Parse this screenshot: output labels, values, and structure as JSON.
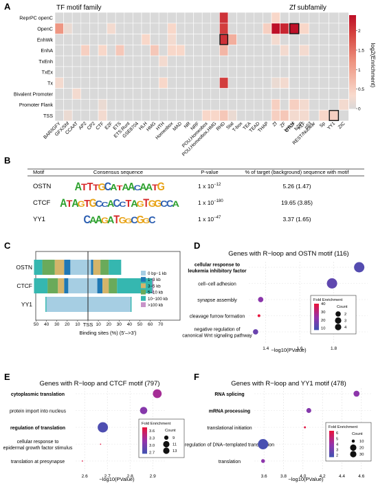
{
  "panel_letters": [
    "A",
    "B",
    "C",
    "D",
    "E",
    "F"
  ],
  "panelA": {
    "title_left": "TF motif family",
    "title_right": "Zf subfamily",
    "colorbar_label": "log2(Enrichment)",
    "colorbar_ticks": [
      "0",
      "0.5",
      "1",
      "1.5",
      "2"
    ]
  },
  "panelB": {
    "headers": [
      "Motif",
      "Consensus sequence",
      "P-value",
      "% of target (background) sequence with motif"
    ],
    "rows": [
      {
        "motif": "OSTN",
        "logo": "ATTTGCATAACAATG",
        "p_base": "1 x 10",
        "p_exp": "−12",
        "pct": "5.26 (1.47)"
      },
      {
        "motif": "CTCF",
        "logo": "ATAGTGCCACCTAGTGGCCA",
        "p_base": "1 x 10",
        "p_exp": "−180",
        "pct": "19.65 (3.85)"
      },
      {
        "motif": "YY1",
        "logo": "CAAGATGGCGGC",
        "p_base": "1 x 10",
        "p_exp": "−47",
        "pct": "3.37 (1.65)"
      }
    ]
  },
  "panelC": {
    "tss_label": "TSS",
    "xlabel": "Binding sites (%) (5'–>3')"
  },
  "panelD": {
    "title": "Genes with R−loop and OSTN motif (116)",
    "xlabel": "−log10(PValue)",
    "legend_fe": "Fold Enrichment",
    "legend_count": "Count"
  },
  "panelE": {
    "title": "Genes with R−loop and CTCF motif (797)",
    "xlabel": "−log10(PValue)",
    "legend_fe": "Fold Enrichment",
    "legend_count": "Count"
  },
  "panelF": {
    "title": "Genes with R−loop and YY1 motif (478)",
    "xlabel": "−log10(PValue)",
    "legend_fe": "Fold Enrichment",
    "legend_count": "Count"
  },
  "colors": {
    "heat_low": "#d9d9d9",
    "heat_high": "#c0102a",
    "dist": [
      "#a6cee3",
      "#1f78b4",
      "#d4b46a",
      "#6aaa5a",
      "#35b7b0",
      "#c893c8"
    ]
  },
  "chart_data": [
    {
      "id": "A-left",
      "type": "heatmap",
      "title": "TF motif family",
      "rows": [
        "ReprPC openC",
        "OpenC",
        "EnhWk",
        "EnhA",
        "TxEnh",
        "TxEx",
        "Tx",
        "Bivalent Promoter",
        "Promoter Flank",
        "TSS"
      ],
      "columns": [
        "BAR/IGFY",
        "GFX/Shf",
        "CCAAT",
        "AP2",
        "CP2",
        "CTF",
        "E2F",
        "ETS",
        "ETS:Runt",
        "GSE8704",
        "HLH",
        "HMG",
        "HTH",
        "Homeobox",
        "MAD",
        "NR",
        "NRF",
        "POU,Homeobox",
        "POU,Homeobox,HMG",
        "RHD",
        "Stat",
        "T-box",
        "TEA",
        "TEAD",
        "THAP",
        "Zf",
        "ZF",
        "bHLH",
        "bZIP",
        "p53"
      ],
      "values": [
        [
          0,
          0,
          0,
          0,
          0,
          0,
          0,
          0,
          0,
          0,
          0,
          0,
          0,
          0,
          0,
          0,
          0,
          0,
          0,
          2.1,
          0,
          0,
          0,
          0,
          0,
          0.4,
          0,
          0,
          0,
          0
        ],
        [
          1.2,
          0.2,
          0,
          0,
          0,
          0,
          0.3,
          0,
          0,
          0,
          0,
          0,
          0,
          0.4,
          0,
          0,
          0,
          0,
          0,
          2.0,
          0,
          0,
          0,
          0,
          0.5,
          2.4,
          2.2,
          2.3,
          0.8,
          0.5
        ],
        [
          0,
          0,
          0,
          0,
          0,
          0,
          0,
          0,
          0,
          0,
          0.4,
          0,
          0,
          0.3,
          0,
          0,
          0,
          0,
          0,
          2.1,
          0.9,
          0,
          0,
          0,
          0,
          0.3,
          0,
          0,
          0.4,
          0
        ],
        [
          0,
          0,
          0,
          0.5,
          0,
          0.4,
          0,
          0.6,
          0,
          0,
          0,
          0.6,
          0,
          0.4,
          0.4,
          0,
          0,
          0,
          0,
          0.8,
          0,
          0,
          0,
          0,
          0,
          0,
          0.3,
          0,
          0.3,
          0
        ],
        [
          0,
          0,
          0,
          0,
          0,
          0,
          0,
          0,
          0,
          0,
          0,
          0,
          0.3,
          0,
          0,
          0,
          0,
          0,
          0,
          0,
          0,
          0,
          0,
          0,
          0,
          0,
          0,
          0,
          0.3,
          0
        ],
        [
          0,
          0,
          0,
          0,
          0,
          0,
          0,
          0,
          0,
          0,
          0,
          0,
          0,
          0,
          0,
          0,
          0,
          0,
          0,
          0,
          0,
          0,
          0,
          0,
          0,
          0,
          0,
          0,
          0,
          0
        ],
        [
          0.3,
          0,
          0,
          0,
          0,
          0,
          0,
          0,
          0,
          0,
          0,
          0,
          0.4,
          0,
          0,
          0,
          0,
          0,
          0,
          2.0,
          0,
          0,
          0,
          0,
          0,
          0.2,
          0.3,
          0,
          0.4,
          0
        ],
        [
          0,
          0,
          0.3,
          0,
          0,
          0,
          0,
          0,
          0,
          0,
          0,
          0,
          0,
          0,
          0,
          0,
          0,
          0,
          0,
          0,
          0,
          0,
          0,
          0,
          0,
          0,
          0,
          0,
          0,
          0
        ],
        [
          0,
          0,
          0,
          0,
          0,
          0.2,
          0,
          0,
          0,
          0,
          0,
          0,
          0,
          0,
          0,
          0,
          0,
          0,
          0,
          0,
          0,
          0,
          0,
          0,
          0,
          0.5,
          0,
          0.5,
          0.3,
          0.6
        ],
        [
          0,
          0.2,
          0,
          0,
          0,
          0.3,
          0,
          0,
          0,
          0,
          0,
          0,
          0,
          0,
          0,
          0,
          0,
          0.4,
          0.4,
          0.6,
          0.2,
          0,
          0,
          0,
          0,
          0.5,
          0.6,
          0.4,
          0.6,
          0.3
        ]
      ],
      "highlighted": [
        [
          2,
          19
        ]
      ]
    },
    {
      "id": "A-right",
      "type": "heatmap",
      "title": "Zf subfamily",
      "rows": [
        "ReprPC openC",
        "OpenC",
        "EnhWk",
        "EnhA",
        "TxEnh",
        "TxEx",
        "Tx",
        "Bivalent Promoter",
        "Promoter Flank",
        "TSS"
      ],
      "columns": [
        "CTCF",
        "KLF",
        "REST/Nuclear",
        "Sp",
        "YY1",
        "ZIC"
      ],
      "values": [
        [
          0,
          0,
          0,
          0,
          0,
          0
        ],
        [
          2.4,
          0.4,
          0,
          0,
          0,
          0
        ],
        [
          0,
          0,
          0,
          0,
          0,
          0
        ],
        [
          0,
          0.3,
          0,
          0,
          0,
          0
        ],
        [
          0,
          0,
          0,
          0,
          0,
          0
        ],
        [
          0,
          0,
          0,
          0,
          0,
          0
        ],
        [
          0,
          0,
          0,
          0,
          0,
          0
        ],
        [
          0,
          0,
          0,
          0,
          0,
          0
        ],
        [
          0.5,
          0.3,
          0,
          0,
          0,
          0.3
        ],
        [
          0.3,
          0.3,
          0,
          0.4,
          0.5,
          0
        ]
      ],
      "highlighted": [
        [
          1,
          0
        ],
        [
          9,
          4
        ]
      ],
      "colorbar_range": [
        0,
        2.4
      ]
    },
    {
      "id": "C",
      "type": "bar",
      "orientation": "horizontal-stacked",
      "categories": [
        "OSTN",
        "CTCF",
        "YY1"
      ],
      "legend": [
        "0 bp−1 kb",
        "1−3 kb",
        "3−5 kb",
        "5−10 kb",
        "10−100 kb",
        ">100 kb"
      ],
      "x_ticks": [
        "50",
        "40",
        "30",
        "20",
        "10",
        "0",
        "10",
        "20",
        "30",
        "40",
        "50",
        "60",
        "70"
      ],
      "xlabel": "Binding sites (%) (5'–>3')",
      "segments": [
        {
          "motif": "OSTN",
          "upstream": [
            17,
            6,
            9,
            12,
            8,
            0
          ],
          "downstream": [
            3,
            2,
            7,
            8,
            12,
            0
          ]
        },
        {
          "motif": "CTCF",
          "upstream": [
            19,
            4,
            6,
            10,
            13,
            0
          ],
          "downstream": [
            9,
            5,
            6,
            8,
            34,
            1
          ]
        },
        {
          "motif": "YY1",
          "upstream": [
            40,
            0,
            0,
            0,
            1,
            0
          ],
          "downstream": [
            41,
            0,
            0,
            0,
            1,
            0
          ]
        }
      ]
    },
    {
      "id": "D",
      "type": "scatter",
      "title": "Genes with R−loop and OSTN motif (116)",
      "xlabel": "−log10(PValue)",
      "x_ticks": [
        "1.4",
        "1.6",
        "1.8"
      ],
      "xlim": [
        1.3,
        2.0
      ],
      "terms": [
        "cellular response to leukemia inhibitory factor",
        "cell−cell adhesion",
        "synapse assembly",
        "cleavage furrow formation",
        "negative regulation of canonical Wnt signaling pathway"
      ],
      "term_lines": [
        [
          "cellular response to",
          "leukemia inhibitory factor"
        ],
        [
          "cell−cell adhesion"
        ],
        [
          "synapse assembly"
        ],
        [
          "cleavage furrow formation"
        ],
        [
          "negative regulation of",
          "canonical Wnt signaling pathway"
        ]
      ],
      "bold": [
        true,
        false,
        false,
        false,
        false
      ],
      "x": [
        1.95,
        1.79,
        1.37,
        1.36,
        1.34
      ],
      "count": [
        4,
        4,
        2,
        1,
        2
      ],
      "fold_enrichment": [
        12,
        14,
        22,
        40,
        16
      ],
      "fe_ticks": [
        "40",
        "30",
        "20",
        "10"
      ],
      "fe_range": [
        8,
        40
      ],
      "count_ticks": [
        2,
        3,
        4
      ]
    },
    {
      "id": "E",
      "type": "scatter",
      "title": "Genes with R−loop and CTCF motif (797)",
      "xlabel": "−log10(PValue)",
      "x_ticks": [
        "2.6",
        "2.7",
        "2.8",
        "2.9"
      ],
      "xlim": [
        2.56,
        2.96
      ],
      "terms": [
        "cytoplasmic translation",
        "protein import into nucleus",
        "regulation of translation",
        "cellular response to epidermal growth factor stimulus",
        "translation at presynapse"
      ],
      "term_lines": [
        [
          "cytoplasmic translation"
        ],
        [
          "protein import into nucleus"
        ],
        [
          "regulation of translation"
        ],
        [
          "cellular response to",
          "epidermal growth factor stimulus"
        ],
        [
          "translation at presynapse"
        ]
      ],
      "bold": [
        true,
        false,
        true,
        false,
        false
      ],
      "x": [
        2.92,
        2.86,
        2.68,
        2.67,
        2.59
      ],
      "count": [
        12,
        11,
        13,
        7,
        7
      ],
      "fold_enrichment": [
        3.3,
        3.1,
        2.75,
        3.7,
        3.7
      ],
      "fe_ticks": [
        "3.6",
        "3.3",
        "3.0",
        "2.7"
      ],
      "fe_range": [
        2.65,
        3.75
      ],
      "count_ticks": [
        9,
        11,
        13
      ]
    },
    {
      "id": "F",
      "type": "scatter",
      "title": "Genes with R−loop and YY1 motif (478)",
      "xlabel": "−log10(PValue)",
      "x_ticks": [
        "3.6",
        "3.8",
        "4.0",
        "4.2",
        "4.4",
        "4.6"
      ],
      "xlim": [
        3.5,
        4.7
      ],
      "terms": [
        "RNA splicing",
        "mRNA processing",
        "translational initiation",
        "regulation of DNA−templated transcription",
        "translation"
      ],
      "term_lines": [
        [
          "RNA splicing"
        ],
        [
          "mRNA processing"
        ],
        [
          "translational initiation"
        ],
        [
          "regulation of DNA−templated transcription"
        ],
        [
          "translation"
        ]
      ],
      "bold": [
        true,
        true,
        false,
        false,
        false
      ],
      "x": [
        4.55,
        4.06,
        4.02,
        3.59,
        3.59
      ],
      "count": [
        18,
        15,
        7,
        30,
        12
      ],
      "fold_enrichment": [
        3.8,
        3.6,
        6.2,
        2.0,
        3.8
      ],
      "fe_ticks": [
        "6",
        "5",
        "4",
        "3",
        "2"
      ],
      "fe_range": [
        1.7,
        6.4
      ],
      "count_ticks": [
        10,
        20,
        30
      ]
    }
  ]
}
